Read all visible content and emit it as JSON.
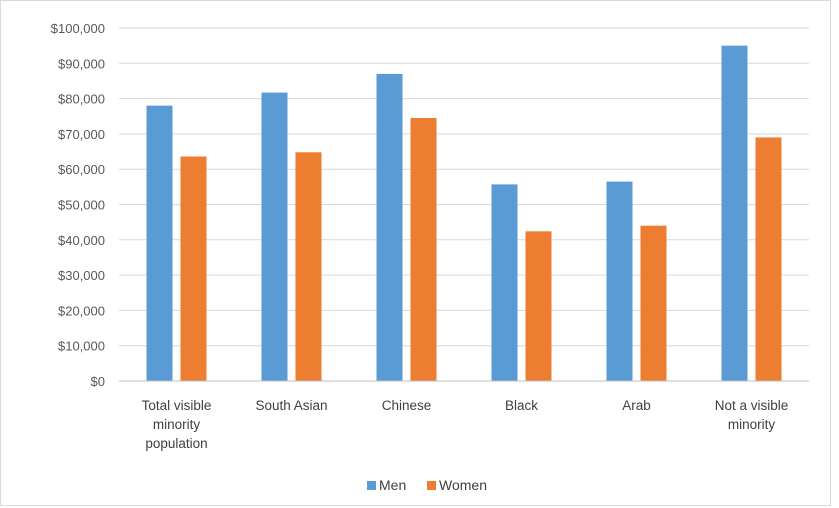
{
  "chart_data": {
    "type": "bar",
    "title": "",
    "xlabel": "",
    "ylabel": "",
    "categories": [
      [
        "Total visible",
        "minority",
        "population"
      ],
      [
        "South Asian"
      ],
      [
        "Chinese"
      ],
      [
        "Black"
      ],
      [
        "Arab"
      ],
      [
        "Not a visible",
        "minority"
      ]
    ],
    "series": [
      {
        "name": "Men",
        "color": "#5b9bd5",
        "values": [
          78000,
          81700,
          87000,
          55700,
          56500,
          95000
        ]
      },
      {
        "name": "Women",
        "color": "#ed7d31",
        "values": [
          63600,
          64800,
          74500,
          42400,
          44000,
          69000
        ]
      }
    ],
    "ylim": [
      0,
      100000
    ],
    "yticks": [
      0,
      10000,
      20000,
      30000,
      40000,
      50000,
      60000,
      70000,
      80000,
      90000,
      100000
    ],
    "ytick_labels": [
      "$0",
      "$10,000",
      "$20,000",
      "$30,000",
      "$40,000",
      "$50,000",
      "$60,000",
      "$70,000",
      "$80,000",
      "$90,000",
      "$100,000"
    ],
    "grid": true,
    "legend": "bottom-center"
  }
}
